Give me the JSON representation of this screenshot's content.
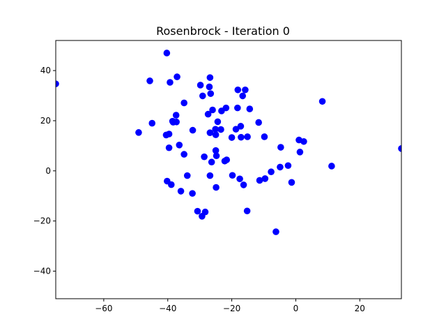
{
  "chart_data": {
    "type": "scatter",
    "title": "Rosenbrock - Iteration 0",
    "xlabel": "",
    "ylabel": "",
    "xlim": [
      -75,
      33
    ],
    "ylim": [
      -51,
      52
    ],
    "xticks": [
      -60,
      -40,
      -20,
      0,
      20
    ],
    "yticks": [
      -40,
      -20,
      0,
      20,
      40
    ],
    "xtick_labels": [
      "−60",
      "−40",
      "−20",
      "0",
      "20"
    ],
    "ytick_labels": [
      "−40",
      "−20",
      "0",
      "20",
      "40"
    ],
    "grid": false,
    "marker_color": "#0000ff",
    "points": [
      {
        "x": -75.0,
        "y": 34.7
      },
      {
        "x": -40.3,
        "y": 47.0
      },
      {
        "x": -45.6,
        "y": 35.9
      },
      {
        "x": -39.3,
        "y": 35.3
      },
      {
        "x": -37.1,
        "y": 37.5
      },
      {
        "x": -29.8,
        "y": 34.2
      },
      {
        "x": -26.8,
        "y": 37.2
      },
      {
        "x": -27.0,
        "y": 33.5
      },
      {
        "x": -26.6,
        "y": 30.8
      },
      {
        "x": -29.1,
        "y": 29.9
      },
      {
        "x": -34.9,
        "y": 27.1
      },
      {
        "x": -18.1,
        "y": 32.3
      },
      {
        "x": -15.8,
        "y": 32.3
      },
      {
        "x": -16.6,
        "y": 29.9
      },
      {
        "x": 8.3,
        "y": 27.7
      },
      {
        "x": -26.0,
        "y": 24.3
      },
      {
        "x": -27.4,
        "y": 22.6
      },
      {
        "x": -23.2,
        "y": 23.9
      },
      {
        "x": -21.8,
        "y": 25.1
      },
      {
        "x": -18.2,
        "y": 25.1
      },
      {
        "x": -14.4,
        "y": 24.7
      },
      {
        "x": -37.4,
        "y": 22.2
      },
      {
        "x": -38.5,
        "y": 19.8
      },
      {
        "x": -37.3,
        "y": 19.5
      },
      {
        "x": -38.3,
        "y": 19.4
      },
      {
        "x": -44.9,
        "y": 19.0
      },
      {
        "x": -24.4,
        "y": 19.6
      },
      {
        "x": -25.1,
        "y": 16.6
      },
      {
        "x": -23.4,
        "y": 16.5
      },
      {
        "x": -17.2,
        "y": 17.8
      },
      {
        "x": -18.7,
        "y": 16.6
      },
      {
        "x": -11.6,
        "y": 19.3
      },
      {
        "x": -49.1,
        "y": 15.3
      },
      {
        "x": -40.5,
        "y": 14.3
      },
      {
        "x": -39.6,
        "y": 14.7
      },
      {
        "x": -32.2,
        "y": 16.2
      },
      {
        "x": -26.8,
        "y": 15.2
      },
      {
        "x": -25.0,
        "y": 14.4
      },
      {
        "x": -20.0,
        "y": 13.3
      },
      {
        "x": -17.1,
        "y": 13.4
      },
      {
        "x": -15.1,
        "y": 13.6
      },
      {
        "x": -9.8,
        "y": 13.6
      },
      {
        "x": 1.0,
        "y": 12.3
      },
      {
        "x": 2.5,
        "y": 11.7
      },
      {
        "x": -36.4,
        "y": 10.3
      },
      {
        "x": -39.6,
        "y": 9.2
      },
      {
        "x": -4.7,
        "y": 9.4
      },
      {
        "x": 1.3,
        "y": 7.5
      },
      {
        "x": 33.0,
        "y": 8.9
      },
      {
        "x": -25.0,
        "y": 8.1
      },
      {
        "x": -24.8,
        "y": 6.0
      },
      {
        "x": -34.9,
        "y": 6.6
      },
      {
        "x": -28.6,
        "y": 5.6
      },
      {
        "x": -22.2,
        "y": 3.9
      },
      {
        "x": -21.6,
        "y": 4.4
      },
      {
        "x": -26.3,
        "y": 3.5
      },
      {
        "x": -4.9,
        "y": 1.5
      },
      {
        "x": -2.4,
        "y": 2.1
      },
      {
        "x": 11.2,
        "y": 1.9
      },
      {
        "x": -7.7,
        "y": -0.4
      },
      {
        "x": -33.9,
        "y": -1.9
      },
      {
        "x": -26.8,
        "y": -1.9
      },
      {
        "x": -19.8,
        "y": -1.8
      },
      {
        "x": -17.5,
        "y": -3.2
      },
      {
        "x": -11.3,
        "y": -3.8
      },
      {
        "x": -9.6,
        "y": -3.1
      },
      {
        "x": -1.3,
        "y": -4.6
      },
      {
        "x": -40.2,
        "y": -4.1
      },
      {
        "x": -38.9,
        "y": -5.5
      },
      {
        "x": -16.3,
        "y": -5.6
      },
      {
        "x": -24.9,
        "y": -6.6
      },
      {
        "x": -35.9,
        "y": -8.1
      },
      {
        "x": -32.3,
        "y": -9.0
      },
      {
        "x": -30.7,
        "y": -16.1
      },
      {
        "x": -28.3,
        "y": -16.4
      },
      {
        "x": -15.2,
        "y": -16.0
      },
      {
        "x": -29.3,
        "y": -18.1
      },
      {
        "x": -6.2,
        "y": -24.3
      }
    ]
  }
}
